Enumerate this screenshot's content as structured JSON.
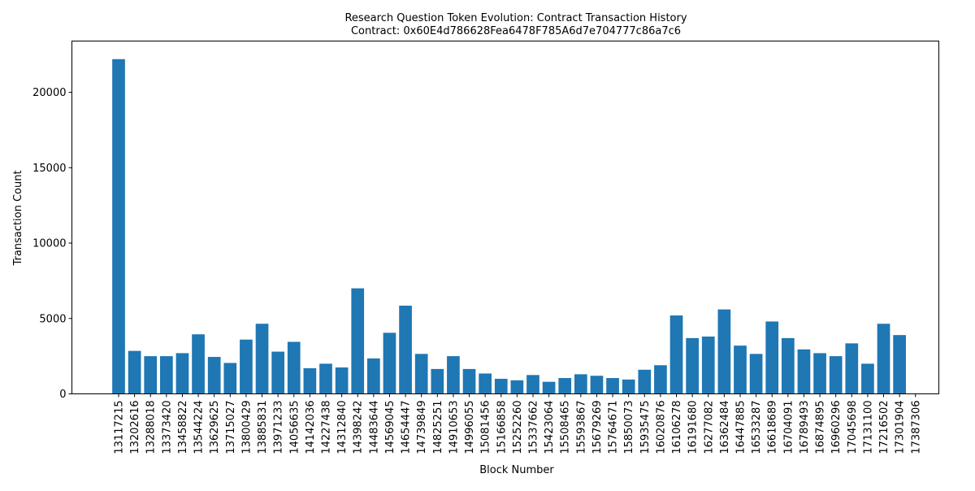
{
  "chart_data": {
    "type": "bar",
    "title": "Research Question Token Evolution: Contract Transaction History",
    "subtitle": "Contract: 0x60E4d786628Fea6478F785A6d7e704777c86a7c6",
    "xlabel": "Block Number",
    "ylabel": "Transaction Count",
    "ylim": [
      0,
      23400
    ],
    "yticks": [
      0,
      5000,
      10000,
      15000,
      20000
    ],
    "grid": false,
    "bar_color": "#1f77b4",
    "categories": [
      "13117215",
      "13202616",
      "13288018",
      "13373420",
      "13458822",
      "13544224",
      "13629625",
      "13715027",
      "13800429",
      "13885831",
      "13971233",
      "14056635",
      "14142036",
      "14227438",
      "14312840",
      "14398242",
      "14483644",
      "14569045",
      "14654447",
      "14739849",
      "14825251",
      "14910653",
      "14996055",
      "15081456",
      "15166858",
      "15252260",
      "15337662",
      "15423064",
      "15508465",
      "15593867",
      "15679269",
      "15764671",
      "15850073",
      "15935475",
      "16020876",
      "16106278",
      "16191680",
      "16277082",
      "16362484",
      "16447885",
      "16533287",
      "16618689",
      "16704091",
      "16789493",
      "16874895",
      "16960296",
      "17045698",
      "17131100",
      "17216502",
      "17301904",
      "17387306"
    ],
    "values": [
      22200,
      2850,
      2500,
      2500,
      2700,
      3950,
      2450,
      2050,
      3600,
      4650,
      2800,
      3450,
      1700,
      2000,
      1750,
      7000,
      2350,
      4050,
      5850,
      2650,
      1650,
      2500,
      1650,
      1350,
      1000,
      900,
      1250,
      800,
      1050,
      1300,
      1200,
      1050,
      950,
      1600,
      1900,
      5200,
      3700,
      3800,
      5600,
      3200,
      2650,
      4800,
      3700,
      2950,
      2700,
      2500,
      3350,
      2000,
      4650,
      3900,
      0
    ]
  }
}
